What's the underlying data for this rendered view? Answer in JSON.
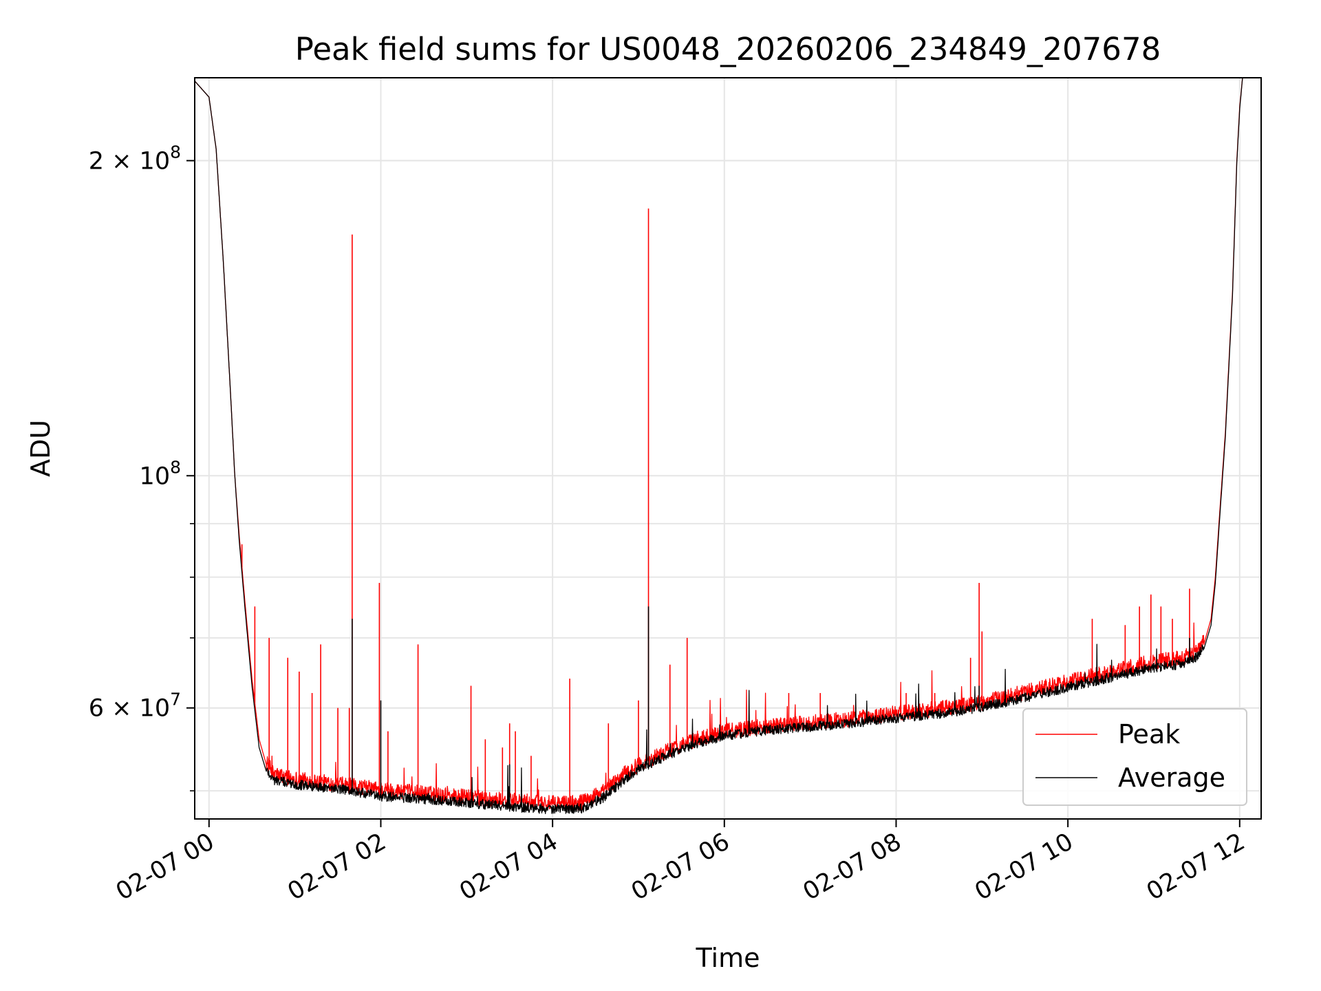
{
  "chart_data": {
    "type": "line",
    "title": "Peak field sums for US0048_20260206_234849_207678",
    "xlabel": "Time",
    "ylabel": "ADU",
    "yscale": "log",
    "grid": true,
    "legend": {
      "position": "lower-right"
    },
    "x_range": [
      "2026-02-06 23:50",
      "2026-02-07 12:15"
    ],
    "ylim": [
      47000000,
      240000000
    ],
    "x_ticks": [
      {
        "t": "2026-02-07 00:00",
        "label": "02-07 00"
      },
      {
        "t": "2026-02-07 02:00",
        "label": "02-07 02"
      },
      {
        "t": "2026-02-07 04:00",
        "label": "02-07 04"
      },
      {
        "t": "2026-02-07 06:00",
        "label": "02-07 06"
      },
      {
        "t": "2026-02-07 08:00",
        "label": "02-07 08"
      },
      {
        "t": "2026-02-07 10:00",
        "label": "02-07 10"
      },
      {
        "t": "2026-02-07 12:00",
        "label": "02-07 12"
      }
    ],
    "y_ticks_major": [
      {
        "v": 100000000,
        "base": "10",
        "exp": "8"
      },
      {
        "v": 200000000,
        "coef": "2",
        "base": "10",
        "exp": "8"
      },
      {
        "v": 60000000,
        "coef": "6",
        "base": "10",
        "exp": "7"
      }
    ],
    "y_ticks_minor": [
      50000000,
      60000000,
      70000000,
      80000000,
      90000000,
      200000000
    ],
    "series": [
      {
        "name": "Peak",
        "color": "#ff0000",
        "baseline": [
          [
            "2026-02-06 23:48",
            240000000
          ],
          [
            "2026-02-07 00:00",
            230000000
          ],
          [
            "2026-02-07 00:05",
            205000000
          ],
          [
            "2026-02-07 00:10",
            160000000
          ],
          [
            "2026-02-07 00:15",
            120000000
          ],
          [
            "2026-02-07 00:18",
            100000000
          ],
          [
            "2026-02-07 00:21",
            88000000
          ],
          [
            "2026-02-07 00:25",
            76000000
          ],
          [
            "2026-02-07 00:30",
            64000000
          ],
          [
            "2026-02-07 00:35",
            56000000
          ],
          [
            "2026-02-07 00:40",
            53000000
          ],
          [
            "2026-02-07 00:45",
            51500000
          ],
          [
            "2026-02-07 01:00",
            51000000
          ],
          [
            "2026-02-07 01:30",
            50400000
          ],
          [
            "2026-02-07 02:00",
            49800000
          ],
          [
            "2026-02-07 02:30",
            49400000
          ],
          [
            "2026-02-07 03:00",
            49000000
          ],
          [
            "2026-02-07 03:30",
            48600000
          ],
          [
            "2026-02-07 04:00",
            48300000
          ],
          [
            "2026-02-07 04:20",
            48400000
          ],
          [
            "2026-02-07 04:35",
            49500000
          ],
          [
            "2026-02-07 04:50",
            51500000
          ],
          [
            "2026-02-07 05:00",
            52600000
          ],
          [
            "2026-02-07 05:20",
            54200000
          ],
          [
            "2026-02-07 05:40",
            55600000
          ],
          [
            "2026-02-07 06:00",
            56600000
          ],
          [
            "2026-02-07 06:30",
            57300000
          ],
          [
            "2026-02-07 07:00",
            57700000
          ],
          [
            "2026-02-07 07:30",
            58200000
          ],
          [
            "2026-02-07 08:00",
            58900000
          ],
          [
            "2026-02-07 08:30",
            59500000
          ],
          [
            "2026-02-07 09:00",
            60300000
          ],
          [
            "2026-02-07 09:30",
            61700000
          ],
          [
            "2026-02-07 10:00",
            63100000
          ],
          [
            "2026-02-07 10:30",
            64500000
          ],
          [
            "2026-02-07 11:00",
            66000000
          ],
          [
            "2026-02-07 11:20",
            66500000
          ],
          [
            "2026-02-07 11:30",
            67500000
          ],
          [
            "2026-02-07 11:35",
            69000000
          ],
          [
            "2026-02-07 11:40",
            73000000
          ],
          [
            "2026-02-07 11:43",
            80000000
          ],
          [
            "2026-02-07 11:46",
            92000000
          ],
          [
            "2026-02-07 11:50",
            110000000
          ],
          [
            "2026-02-07 11:55",
            150000000
          ],
          [
            "2026-02-07 11:58",
            200000000
          ],
          [
            "2026-02-07 12:00",
            225000000
          ],
          [
            "2026-02-07 12:02",
            240000000
          ]
        ],
        "spikes": [
          [
            "2026-02-07 00:23",
            86000000
          ],
          [
            "2026-02-07 00:32",
            75000000
          ],
          [
            "2026-02-07 00:42",
            70000000
          ],
          [
            "2026-02-07 00:55",
            67000000
          ],
          [
            "2026-02-07 01:03",
            65000000
          ],
          [
            "2026-02-07 01:12",
            62000000
          ],
          [
            "2026-02-07 01:18",
            69000000
          ],
          [
            "2026-02-07 01:30",
            60000000
          ],
          [
            "2026-02-07 01:38",
            60000000
          ],
          [
            "2026-02-07 01:40",
            170000000
          ],
          [
            "2026-02-07 01:59",
            79000000
          ],
          [
            "2026-02-07 02:05",
            57000000
          ],
          [
            "2026-02-07 02:26",
            69000000
          ],
          [
            "2026-02-07 03:03",
            63000000
          ],
          [
            "2026-02-07 03:13",
            56000000
          ],
          [
            "2026-02-07 03:25",
            55000000
          ],
          [
            "2026-02-07 03:30",
            58000000
          ],
          [
            "2026-02-07 03:34",
            57000000
          ],
          [
            "2026-02-07 03:45",
            54000000
          ],
          [
            "2026-02-07 04:12",
            64000000
          ],
          [
            "2026-02-07 04:39",
            58000000
          ],
          [
            "2026-02-07 05:00",
            61000000
          ],
          [
            "2026-02-07 05:07",
            180000000
          ],
          [
            "2026-02-07 05:22",
            66000000
          ],
          [
            "2026-02-07 05:34",
            70000000
          ],
          [
            "2026-02-07 06:45",
            62000000
          ],
          [
            "2026-02-07 07:07",
            62000000
          ],
          [
            "2026-02-07 08:07",
            62000000
          ],
          [
            "2026-02-07 08:27",
            62000000
          ],
          [
            "2026-02-07 08:52",
            67000000
          ],
          [
            "2026-02-07 08:58",
            79000000
          ],
          [
            "2026-02-07 09:00",
            71000000
          ],
          [
            "2026-02-07 10:17",
            73000000
          ],
          [
            "2026-02-07 10:40",
            72000000
          ],
          [
            "2026-02-07 10:50",
            75000000
          ],
          [
            "2026-02-07 10:58",
            77000000
          ],
          [
            "2026-02-07 11:05",
            75000000
          ],
          [
            "2026-02-07 11:13",
            73000000
          ],
          [
            "2026-02-07 11:25",
            78000000
          ]
        ]
      },
      {
        "name": "Average",
        "color": "#000000",
        "baseline": [
          [
            "2026-02-06 23:48",
            240000000
          ],
          [
            "2026-02-07 00:00",
            230000000
          ],
          [
            "2026-02-07 00:05",
            205000000
          ],
          [
            "2026-02-07 00:10",
            160000000
          ],
          [
            "2026-02-07 00:15",
            120000000
          ],
          [
            "2026-02-07 00:18",
            100000000
          ],
          [
            "2026-02-07 00:21",
            87000000
          ],
          [
            "2026-02-07 00:25",
            75000000
          ],
          [
            "2026-02-07 00:30",
            63000000
          ],
          [
            "2026-02-07 00:35",
            55000000
          ],
          [
            "2026-02-07 00:40",
            52200000
          ],
          [
            "2026-02-07 00:45",
            51000000
          ],
          [
            "2026-02-07 01:00",
            50500000
          ],
          [
            "2026-02-07 01:30",
            50000000
          ],
          [
            "2026-02-07 02:00",
            49200000
          ],
          [
            "2026-02-07 02:30",
            48900000
          ],
          [
            "2026-02-07 03:00",
            48500000
          ],
          [
            "2026-02-07 03:30",
            48100000
          ],
          [
            "2026-02-07 04:00",
            47800000
          ],
          [
            "2026-02-07 04:20",
            47900000
          ],
          [
            "2026-02-07 04:35",
            49000000
          ],
          [
            "2026-02-07 04:50",
            51000000
          ],
          [
            "2026-02-07 05:00",
            52200000
          ],
          [
            "2026-02-07 05:20",
            53800000
          ],
          [
            "2026-02-07 05:40",
            55200000
          ],
          [
            "2026-02-07 06:00",
            56200000
          ],
          [
            "2026-02-07 06:30",
            56900000
          ],
          [
            "2026-02-07 07:00",
            57300000
          ],
          [
            "2026-02-07 07:30",
            57800000
          ],
          [
            "2026-02-07 08:00",
            58400000
          ],
          [
            "2026-02-07 08:30",
            59000000
          ],
          [
            "2026-02-07 09:00",
            59800000
          ],
          [
            "2026-02-07 09:30",
            61100000
          ],
          [
            "2026-02-07 10:00",
            62500000
          ],
          [
            "2026-02-07 10:30",
            63900000
          ],
          [
            "2026-02-07 11:00",
            65300000
          ],
          [
            "2026-02-07 11:20",
            65800000
          ],
          [
            "2026-02-07 11:30",
            66800000
          ],
          [
            "2026-02-07 11:35",
            68300000
          ],
          [
            "2026-02-07 11:40",
            72000000
          ],
          [
            "2026-02-07 11:43",
            79000000
          ],
          [
            "2026-02-07 11:46",
            91000000
          ],
          [
            "2026-02-07 11:50",
            109000000
          ],
          [
            "2026-02-07 11:55",
            149000000
          ],
          [
            "2026-02-07 11:58",
            199000000
          ],
          [
            "2026-02-07 12:00",
            224000000
          ],
          [
            "2026-02-07 12:02",
            240000000
          ]
        ],
        "spikes": [
          [
            "2026-02-07 01:40",
            73000000
          ],
          [
            "2026-02-07 02:00",
            61000000
          ],
          [
            "2026-02-07 05:07",
            75000000
          ],
          [
            "2026-02-07 08:58",
            63000000
          ],
          [
            "2026-02-07 03:30",
            53000000
          ],
          [
            "2026-02-07 11:25",
            70000000
          ]
        ]
      }
    ]
  }
}
